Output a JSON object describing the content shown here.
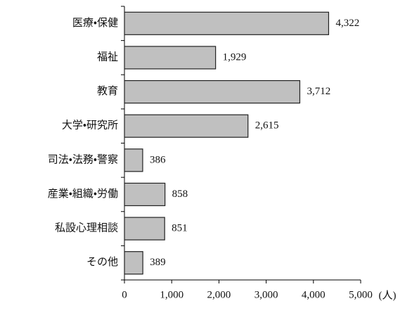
{
  "chart_data": {
    "type": "hbar",
    "categories": [
      "医療・保健",
      "福祉",
      "教育",
      "大学・研究所",
      "司法・法務・警察",
      "産業・組織・労働",
      "私設心理相談",
      "その他"
    ],
    "values": [
      4322,
      1929,
      3712,
      2615,
      386,
      858,
      851,
      389
    ],
    "value_labels": [
      "4,322",
      "1,929",
      "3,712",
      "2,615",
      "386",
      "858",
      "851",
      "389"
    ],
    "color": "#c0c0c0",
    "xlabel": "(人)",
    "xlim": [
      0,
      5000
    ],
    "xticks": [
      0,
      {
        "value": 1000,
        "label": "1,000"
      },
      {
        "value": 2000,
        "label": "2,000"
      },
      {
        "value": 3000,
        "label": "3,000"
      },
      {
        "value": 4000,
        "label": "4,000"
      },
      {
        "value": 5000,
        "label": "5,000"
      }
    ]
  }
}
